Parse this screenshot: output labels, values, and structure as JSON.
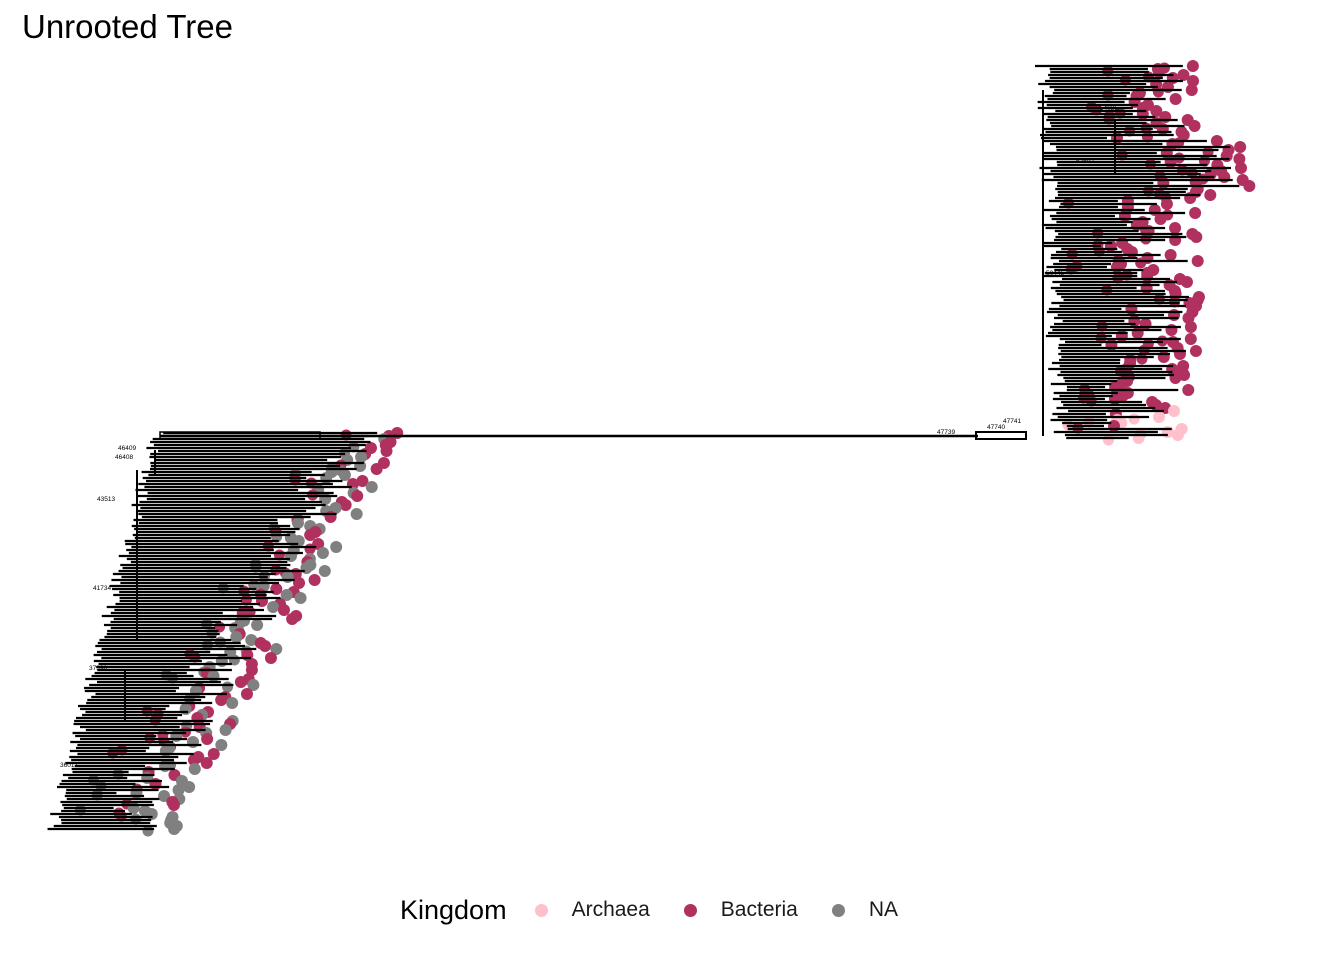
{
  "title": "Unrooted Tree",
  "legend": {
    "title": "Kingdom",
    "items": [
      {
        "label": "Archaea",
        "color": "#FFC0CB"
      },
      {
        "label": "Bacteria",
        "color": "#B03060"
      },
      {
        "label": "NA",
        "color": "#808080"
      }
    ]
  },
  "node_labels": [
    "47739",
    "47740",
    "47741",
    "54025",
    "52692",
    "50445",
    "46409",
    "46408",
    "43513",
    "41734",
    "37398",
    "36017"
  ],
  "colors": {
    "branch": "#000000",
    "background": "#ffffff"
  }
}
